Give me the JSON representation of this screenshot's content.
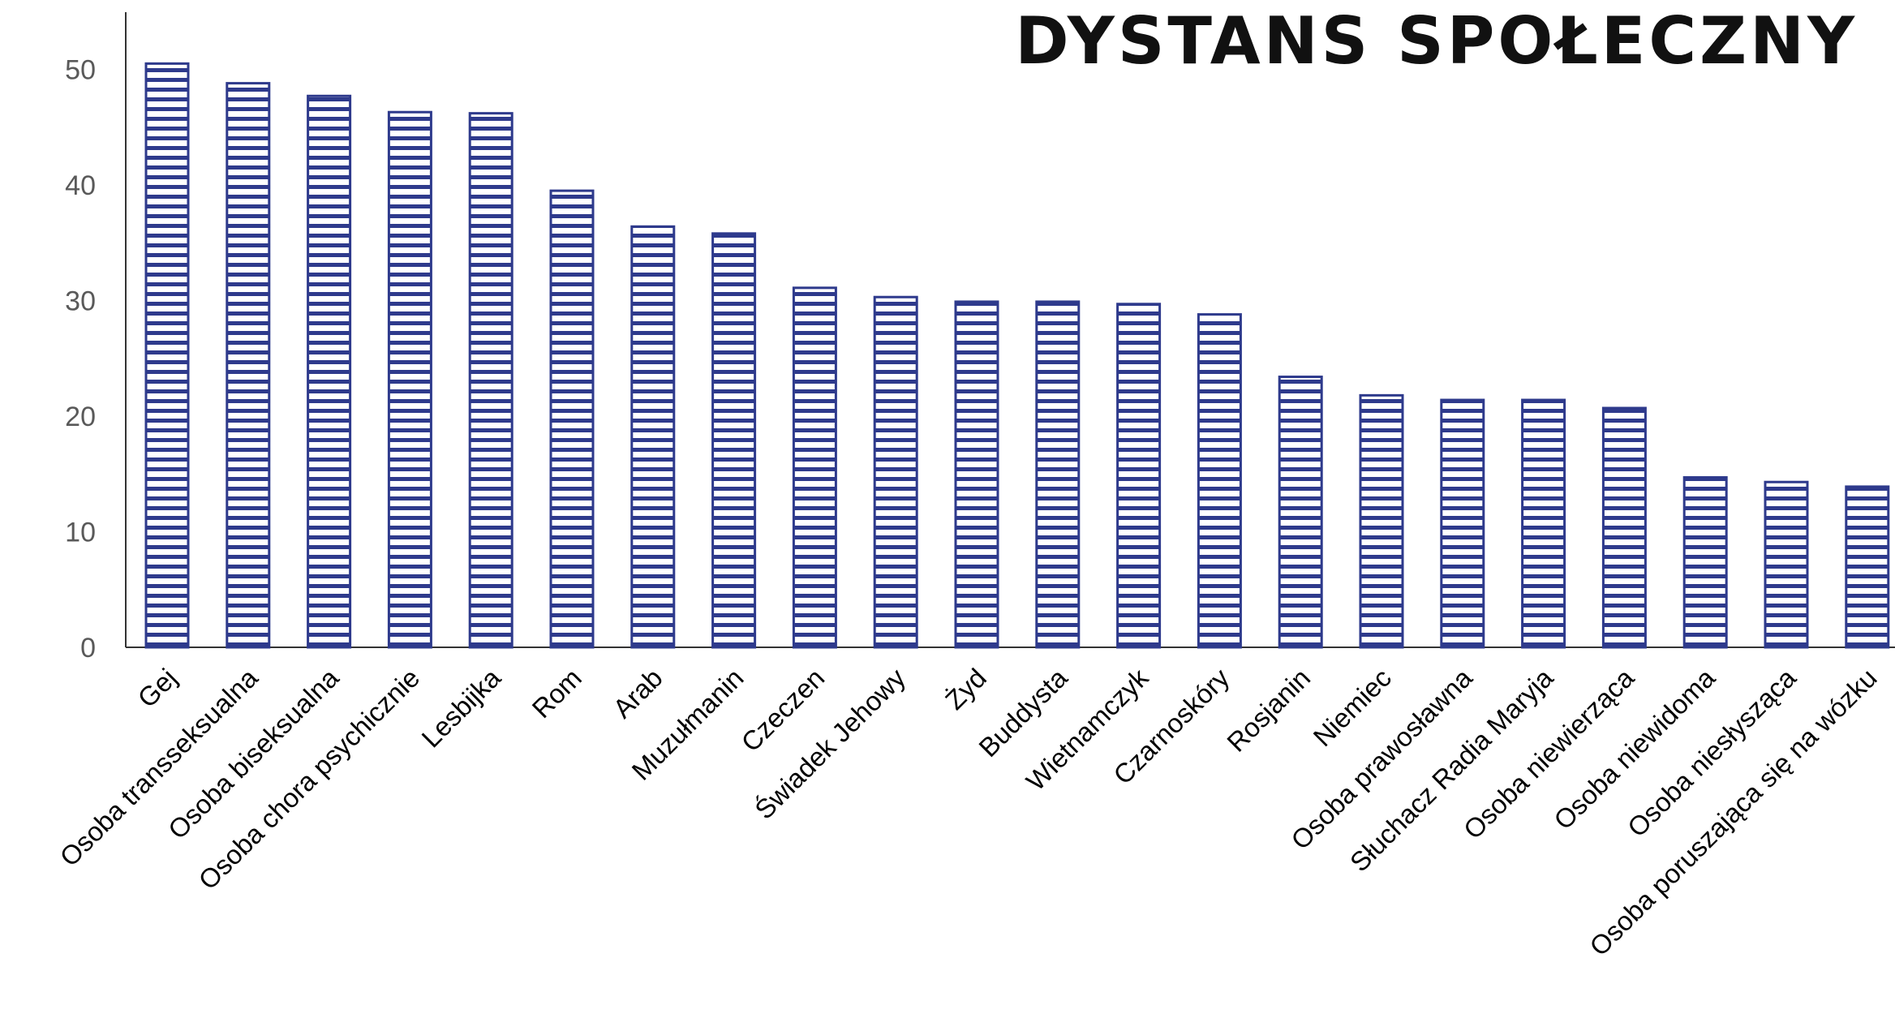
{
  "chart_data": {
    "type": "bar",
    "title": "DYSTANS SPOŁECZNY",
    "xlabel": "",
    "ylabel": "",
    "ylim": [
      0,
      55
    ],
    "yticks": [
      0,
      10,
      20,
      30,
      40,
      50
    ],
    "grid": false,
    "legend": "none",
    "bar_color": "#2e3a8c",
    "bar_pattern": "horizontal-stripes",
    "categories": [
      "Gej",
      "Osoba transseksualna",
      "Osoba biseksualna",
      "Osoba chora psychicznie",
      "Lesbijka",
      "Rom",
      "Arab",
      "Muzułmanin",
      "Czeczen",
      "Świadek Jehowy",
      "Żyd",
      "Buddysta",
      "Wietnamczyk",
      "Czarnoskóry",
      "Rosjanin",
      "Niemiec",
      "Osoba prawosławna",
      "Słuchacz Radia Maryja",
      "Osoba niewierząca",
      "Osoba niewidoma",
      "Osoba niesłysząca",
      "Osoba poruszająca się na wózku"
    ],
    "values": [
      50.5,
      48.8,
      47.7,
      46.3,
      46.2,
      39.5,
      36.4,
      35.8,
      31.1,
      30.3,
      29.9,
      29.9,
      29.7,
      28.8,
      23.4,
      21.8,
      21.4,
      21.4,
      20.7,
      14.7,
      14.3,
      13.9
    ]
  }
}
